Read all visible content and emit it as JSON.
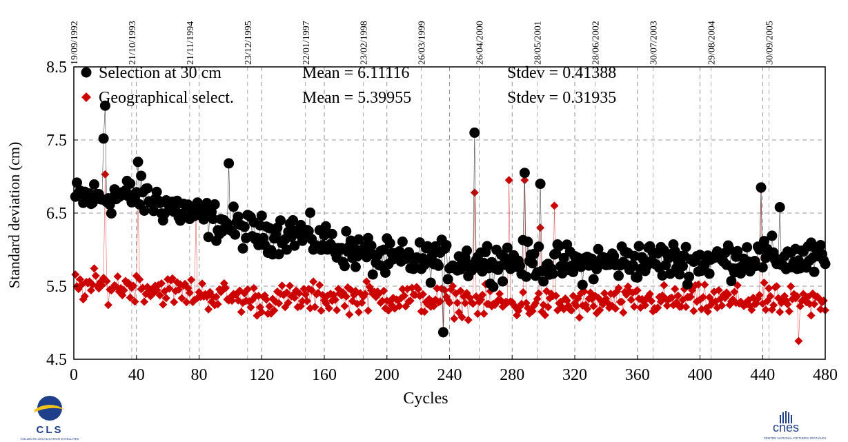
{
  "chart_data": {
    "type": "scatter",
    "xlabel": "Cycles",
    "ylabel": "Standard deviation (cm)",
    "xlim": [
      0,
      480
    ],
    "ylim": [
      4.5,
      8.5
    ],
    "x_ticks": [
      0,
      40,
      80,
      120,
      160,
      200,
      240,
      280,
      320,
      360,
      400,
      440,
      480
    ],
    "y_ticks": [
      4.5,
      5.5,
      6.5,
      7.5,
      8.5
    ],
    "grid": true,
    "top_axis": {
      "ticks": [
        {
          "cycle": 0,
          "label": "19/09/1992"
        },
        {
          "cycle": 37,
          "label": "21/10/1993"
        },
        {
          "cycle": 74,
          "label": "21/11/1994"
        },
        {
          "cycle": 111,
          "label": "23/12/1995"
        },
        {
          "cycle": 148,
          "label": "22/01/1997"
        },
        {
          "cycle": 185,
          "label": "23/02/1998"
        },
        {
          "cycle": 222,
          "label": "26/03/1999"
        },
        {
          "cycle": 259,
          "label": "26/04/2000"
        },
        {
          "cycle": 296,
          "label": "28/05/2001"
        },
        {
          "cycle": 333,
          "label": "28/06/2002"
        },
        {
          "cycle": 370,
          "label": "30/07/2003"
        },
        {
          "cycle": 407,
          "label": "29/08/2004"
        },
        {
          "cycle": 444,
          "label": "30/09/2005"
        }
      ]
    },
    "legend_position": "top-left",
    "series": [
      {
        "name": "Selection at 30 cm",
        "color": "#000000",
        "marker": "circle",
        "mean_label": "Mean = 6.11116",
        "stdev_label": "Stdev = 0.41388",
        "spikes": [
          [
            20,
            7.97
          ],
          [
            19,
            7.52
          ],
          [
            41,
            7.2
          ],
          [
            99,
            7.18
          ],
          [
            256,
            7.6
          ],
          [
            288,
            7.05
          ],
          [
            298,
            6.9
          ],
          [
            439,
            6.85
          ],
          [
            451,
            6.58
          ],
          [
            236,
            4.87
          ]
        ],
        "segments": [
          [
            0,
            6.7
          ],
          [
            40,
            6.75
          ],
          [
            80,
            6.45
          ],
          [
            120,
            6.2
          ],
          [
            140,
            6.25
          ],
          [
            160,
            6.1
          ],
          [
            200,
            5.85
          ],
          [
            240,
            5.85
          ],
          [
            280,
            5.85
          ],
          [
            320,
            5.8
          ],
          [
            360,
            5.85
          ],
          [
            400,
            5.85
          ],
          [
            440,
            5.9
          ],
          [
            480,
            5.85
          ]
        ],
        "noise": 0.28
      },
      {
        "name": "Geographical select.",
        "color": "#cc0000",
        "marker": "diamond",
        "mean_label": "Mean = 5.39955",
        "stdev_label": "Stdev = 0.31935",
        "spikes": [
          [
            20,
            7.03
          ],
          [
            41,
            6.65
          ],
          [
            78,
            6.48
          ],
          [
            256,
            6.78
          ],
          [
            278,
            6.95
          ],
          [
            288,
            6.95
          ],
          [
            298,
            6.3
          ],
          [
            307,
            6.6
          ],
          [
            439,
            6.82
          ],
          [
            463,
            4.75
          ],
          [
            236,
            4.85
          ]
        ],
        "segments": [
          [
            0,
            5.5
          ],
          [
            40,
            5.5
          ],
          [
            80,
            5.4
          ],
          [
            120,
            5.3
          ],
          [
            160,
            5.35
          ],
          [
            200,
            5.35
          ],
          [
            240,
            5.3
          ],
          [
            280,
            5.25
          ],
          [
            320,
            5.25
          ],
          [
            360,
            5.3
          ],
          [
            400,
            5.3
          ],
          [
            440,
            5.3
          ],
          [
            480,
            5.25
          ]
        ],
        "noise": 0.22
      }
    ]
  },
  "logos": {
    "left": {
      "text": "CLS",
      "subtext": "COLLECTE LOCALISATION SATELLITES"
    },
    "right": {
      "text": "cnes",
      "subtext": "CENTRE NATIONAL D'ETUDES SPATIALES"
    }
  }
}
